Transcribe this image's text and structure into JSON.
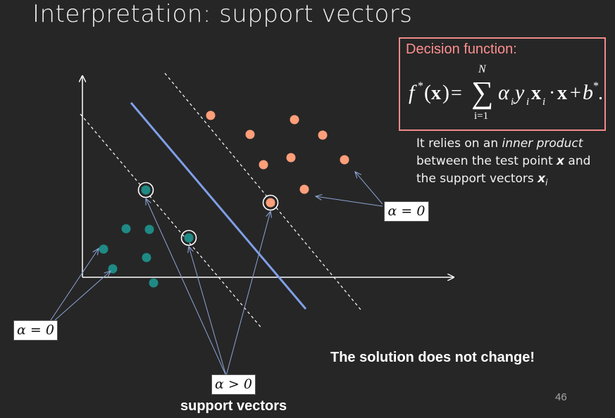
{
  "slide": {
    "title": "Interpretation: support vectors",
    "page_number": "46"
  },
  "decision": {
    "label": "Decision function:",
    "formula": {
      "lhs": "f*(x) =",
      "sum_upper": "N",
      "sum_lower": "i=1",
      "body": "α_i y_i x_i · x + b*."
    }
  },
  "note": {
    "line1_prefix": "It relies on an ",
    "line1_em": "inner product",
    "line2_prefix": "between the test point ",
    "line2_var": "x",
    "line2_suffix": " and",
    "line3_prefix": "the support vectors ",
    "line3_var": "x",
    "line3_sub": "i"
  },
  "labels": {
    "alpha_zero_right": "α = 0",
    "alpha_zero_left": "α = 0",
    "alpha_positive": "α > 0",
    "conclusion": "The solution does not change!",
    "support_vectors": "support vectors"
  },
  "colors": {
    "background": "#262626",
    "positive_points": "#ff9f7a",
    "negative_points": "#1f8a85",
    "decision_boundary": "#7f9fe8",
    "box_border": "#f28a8a",
    "box_label": "#ff8f8f",
    "annotation_arrows": "#8da3d6"
  }
}
